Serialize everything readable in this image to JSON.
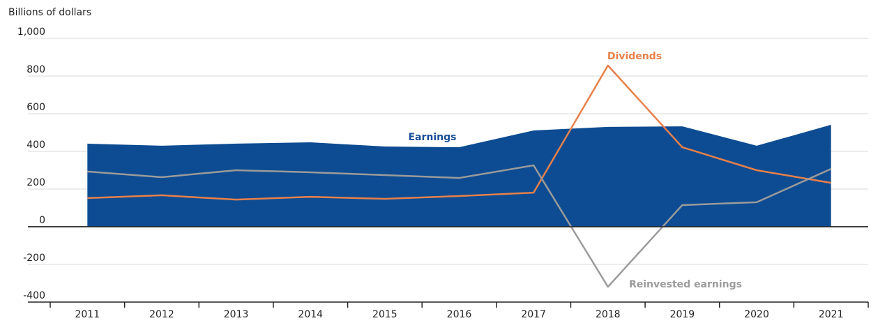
{
  "chart_data": {
    "type": "line",
    "y_axis_label": "Billions of dollars",
    "categories": [
      "2011",
      "2012",
      "2013",
      "2014",
      "2015",
      "2016",
      "2017",
      "2018",
      "2019",
      "2020",
      "2021"
    ],
    "series": [
      {
        "name": "Earnings",
        "color": "#0d4c92",
        "style": "area",
        "values": [
          441,
          430,
          441,
          448,
          426,
          422,
          511,
          530,
          533,
          430,
          541
        ]
      },
      {
        "name": "Dividends",
        "color": "#e8804a",
        "style": "line",
        "values": [
          152,
          167,
          144,
          159,
          148,
          163,
          181,
          856,
          422,
          300,
          233
        ]
      },
      {
        "name": "Reinvested earnings",
        "color": "#9b9b9b",
        "style": "line",
        "values": [
          293,
          263,
          300,
          289,
          274,
          259,
          326,
          -319,
          115,
          130,
          307
        ]
      }
    ],
    "ylim": [
      -400,
      1000
    ],
    "yticks": [
      -400,
      -200,
      0,
      200,
      400,
      600,
      800,
      {
        "value": 1000,
        "label": "1,000"
      }
    ],
    "grid": true
  }
}
